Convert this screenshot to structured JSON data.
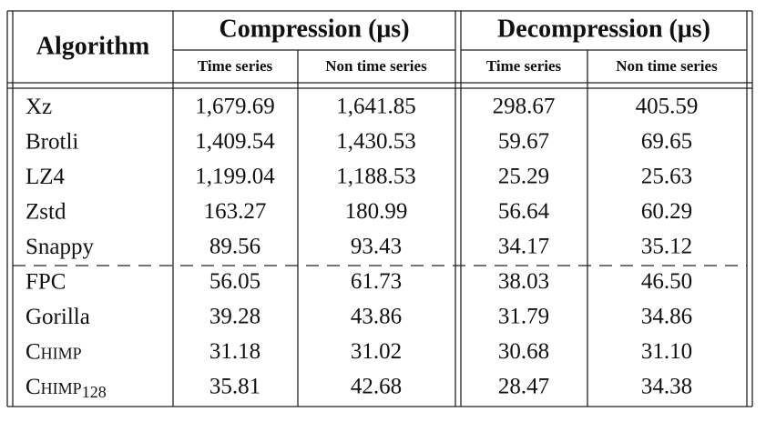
{
  "header": {
    "algorithm": "Algorithm",
    "groups": [
      {
        "title": "Compression (μs)",
        "columns": [
          "Time series",
          "Non time series"
        ]
      },
      {
        "title": "Decompression (μs)",
        "columns": [
          "Time series",
          "Non time series"
        ]
      }
    ]
  },
  "table": {
    "rows": [
      {
        "name": "Xz",
        "values": [
          "1,679.69",
          "1,641.85",
          "298.67",
          "405.59"
        ]
      },
      {
        "name": "Brotli",
        "values": [
          "1,409.54",
          "1,430.53",
          "59.67",
          "69.65"
        ]
      },
      {
        "name": "LZ4",
        "values": [
          "1,199.04",
          "1,188.53",
          "25.29",
          "25.63"
        ]
      },
      {
        "name": "Zstd",
        "values": [
          "163.27",
          "180.99",
          "56.64",
          "60.29"
        ]
      },
      {
        "name": "Snappy",
        "values": [
          "89.56",
          "93.43",
          "34.17",
          "35.12"
        ]
      },
      {
        "name": "FPC",
        "values": [
          "56.05",
          "61.73",
          "38.03",
          "46.50"
        ]
      },
      {
        "name": "Gorilla",
        "values": [
          "39.28",
          "43.86",
          "31.79",
          "34.86"
        ]
      },
      {
        "name": "Chimp",
        "small_caps": true,
        "values": [
          "31.18",
          "31.02",
          "30.68",
          "31.10"
        ]
      },
      {
        "name": "Chimp",
        "small_caps": true,
        "subscript": "128",
        "values": [
          "35.81",
          "42.68",
          "28.47",
          "34.38"
        ]
      }
    ]
  }
}
